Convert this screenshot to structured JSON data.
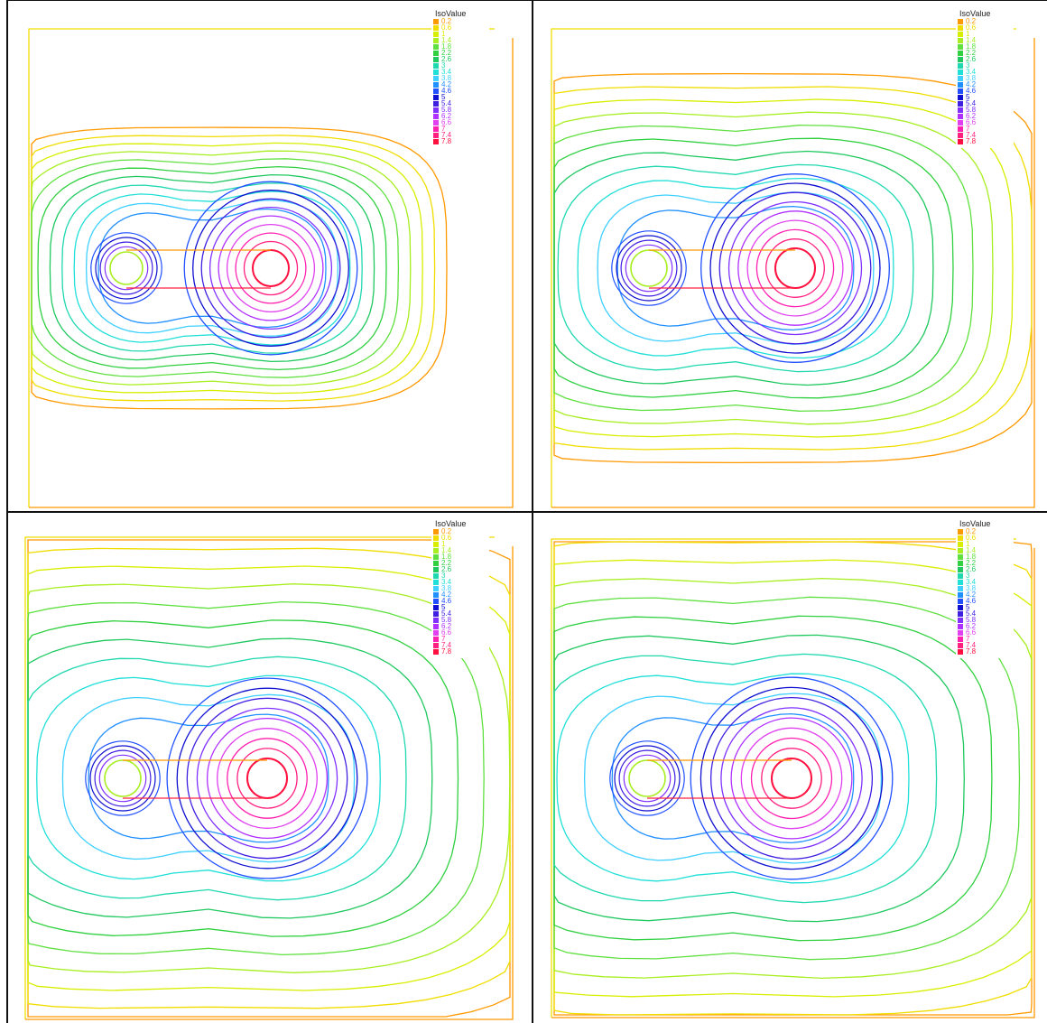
{
  "legend": {
    "title": "IsoValue",
    "entries": [
      {
        "label": "0.2",
        "color": "#ff9900"
      },
      {
        "label": "0.6",
        "color": "#f0dd00"
      },
      {
        "label": "1",
        "color": "#d8ee00"
      },
      {
        "label": "1.4",
        "color": "#a8ee20"
      },
      {
        "label": "1.8",
        "color": "#60e040"
      },
      {
        "label": "2.2",
        "color": "#30d040"
      },
      {
        "label": "2.6",
        "color": "#20c860"
      },
      {
        "label": "3",
        "color": "#20d8b0"
      },
      {
        "label": "3.4",
        "color": "#20e0d8"
      },
      {
        "label": "3.8",
        "color": "#40d0ff"
      },
      {
        "label": "4.2",
        "color": "#2090ff"
      },
      {
        "label": "4.6",
        "color": "#2050ff"
      },
      {
        "label": "5",
        "color": "#1010d0"
      },
      {
        "label": "5.4",
        "color": "#4020e0"
      },
      {
        "label": "5.8",
        "color": "#8030ff"
      },
      {
        "label": "6.2",
        "color": "#b030ff"
      },
      {
        "label": "6.6",
        "color": "#e040f0"
      },
      {
        "label": "7",
        "color": "#ff20b0"
      },
      {
        "label": "7.4",
        "color": "#ff2080"
      },
      {
        "label": "7.8",
        "color": "#ff1040"
      }
    ]
  },
  "chart_data": [
    {
      "type": "contour",
      "panel": "top-left",
      "levels_shown": "0.2-7.8",
      "spread": "narrow"
    },
    {
      "type": "contour",
      "panel": "top-right",
      "levels_shown": "0.2-7.8",
      "spread": "medium"
    },
    {
      "type": "contour",
      "panel": "bottom-left",
      "levels_shown": "0.2-7.8",
      "spread": "wide"
    },
    {
      "type": "contour",
      "panel": "bottom-right",
      "levels_shown": "0.2-7.8",
      "spread": "widest"
    }
  ]
}
